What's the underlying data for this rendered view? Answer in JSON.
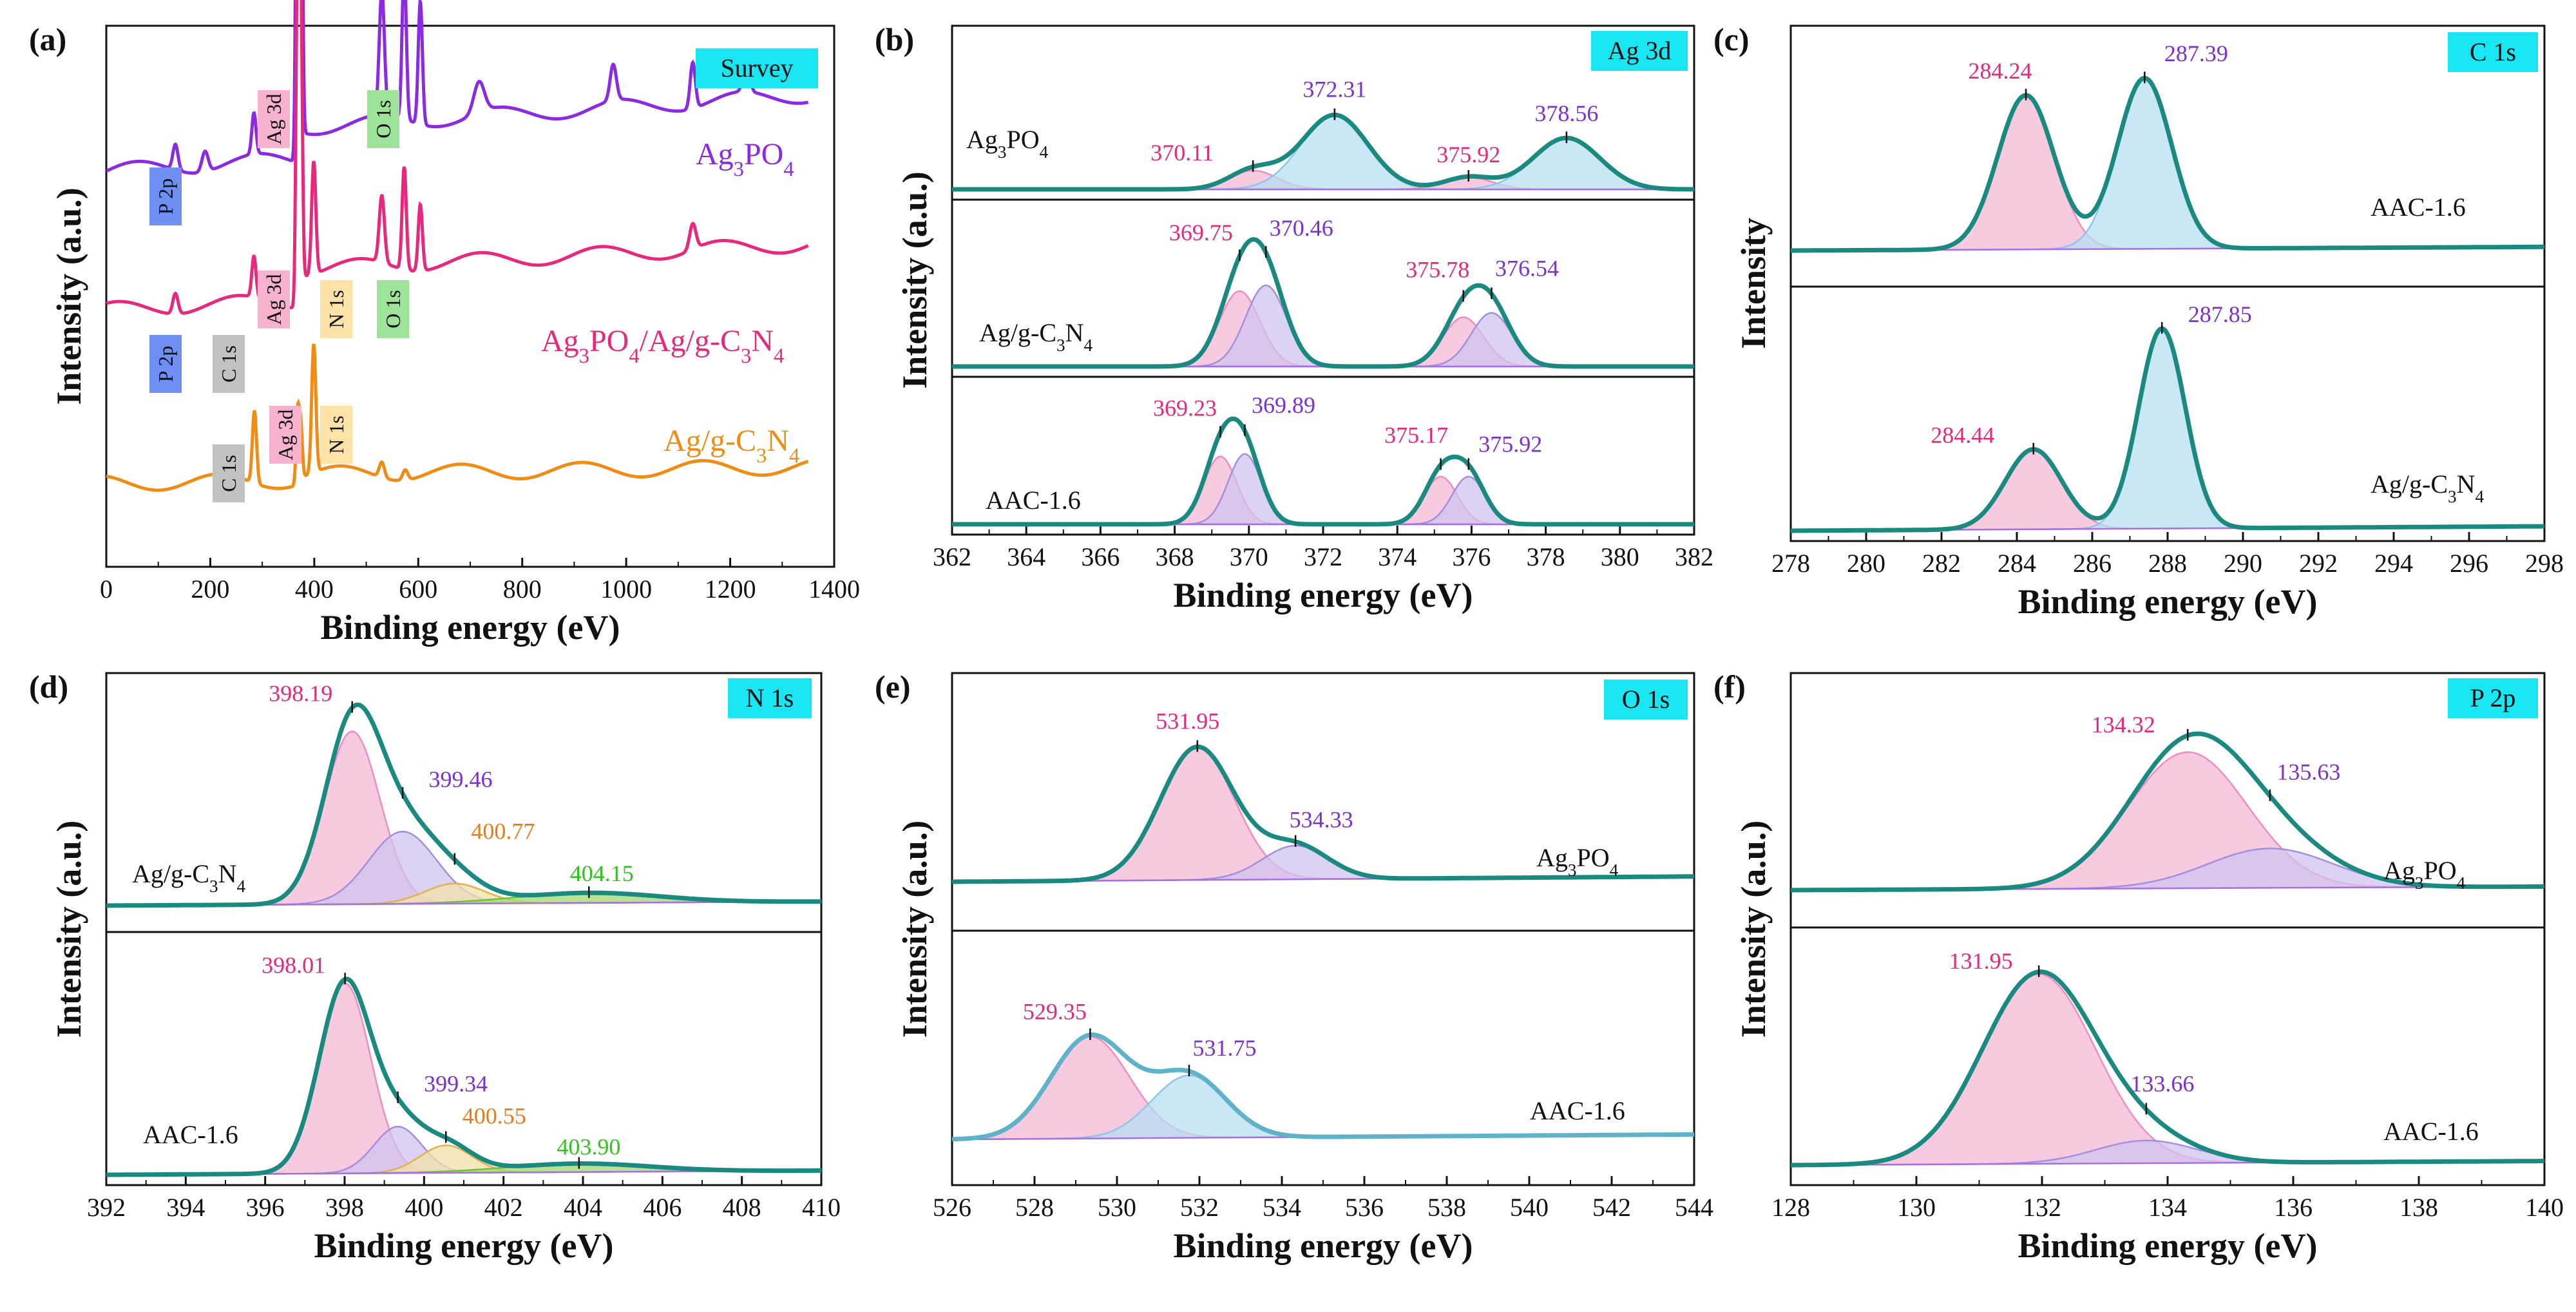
{
  "figure": {
    "x_title": "Binding energy (eV)",
    "y_title": "Intensity (a.u.)"
  },
  "colors": {
    "teal": "#1a8a80",
    "pink": "#f5b8d5",
    "blue": "#b7dff2",
    "lavender": "#d0c4ee",
    "yellow": "#f2e0a8",
    "green": "#9fd86f",
    "tag_cyan": "#18e6f2",
    "lbl_pink": "#e6287c",
    "lbl_purple": "#7b2fd6",
    "lbl_orange": "#f07a10",
    "lbl_green": "#2ec41c",
    "survey_purple": "#8a2be2",
    "survey_pink": "#e8287c",
    "survey_orange": "#f08c14",
    "tag_pink": "#f6b2cf",
    "tag_green": "#9fe39b",
    "tag_yellow": "#fde2a8",
    "tag_blue": "#6f8ff4",
    "tag_gray": "#c2c2c2"
  },
  "chart_data": [
    {
      "panel": "a",
      "type": "line",
      "tag": "Survey",
      "panel_label": "(a)",
      "xlim": [
        0,
        1400
      ],
      "xticks": [
        "0",
        "200",
        "400",
        "600",
        "800",
        "1000",
        "1200",
        "1400"
      ],
      "xlabel": "Binding energy (eV)",
      "ylabel": "Intensity (a.u.)",
      "series": [
        {
          "name": "Ag3PO4",
          "label_main": "Ag",
          "label_sub1": "3",
          "label_mid": "PO",
          "label_sub2": "4",
          "baseline": 0.82,
          "tilt": 0.22,
          "peaks": [
            [
              133,
              0.05,
              5
            ],
            [
              190,
              0.04,
              6
            ],
            [
              284,
              0.08,
              4
            ],
            [
              368,
              1.0,
              3
            ],
            [
              374,
              0.8,
              3
            ],
            [
              530,
              0.24,
              5
            ],
            [
              573,
              0.3,
              4
            ],
            [
              604,
              0.24,
              4
            ],
            [
              717,
              0.06,
              10
            ],
            [
              975,
              0.07,
              6
            ],
            [
              1128,
              0.09,
              5
            ],
            [
              1231,
              0.06,
              6
            ]
          ]
        },
        {
          "name": "Ag3PO4/Ag/g-C3N4",
          "label": "Ag₃PO₄/Ag/g-C₃N₄",
          "baseline": 0.5,
          "tilt": 0.17,
          "peaks": [
            [
              133,
              0.04,
              5
            ],
            [
              284,
              0.08,
              4
            ],
            [
              368,
              0.7,
              3
            ],
            [
              374,
              0.55,
              3
            ],
            [
              399,
              0.22,
              4
            ],
            [
              530,
              0.13,
              5
            ],
            [
              573,
              0.2,
              4
            ],
            [
              604,
              0.13,
              4
            ],
            [
              1128,
              0.05,
              6
            ]
          ]
        },
        {
          "name": "Ag/g-C3N4",
          "label": "Ag/g-C₃N₄",
          "baseline": 0.15,
          "tilt": 0.05,
          "peaks": [
            [
              285,
              0.14,
              4
            ],
            [
              368,
              0.13,
              3
            ],
            [
              374,
              0.1,
              3
            ],
            [
              399,
              0.25,
              4
            ],
            [
              530,
              0.03,
              5
            ],
            [
              575,
              0.02,
              5
            ]
          ]
        }
      ],
      "annotations": [
        "Ag 3d",
        "O 1s",
        "P 2p",
        "Ag 3d",
        "N 1s",
        "O 1s",
        "P 2p",
        "C 1s",
        "C 1s",
        "Ag 3d",
        "N 1s"
      ]
    },
    {
      "panel": "b",
      "type": "area",
      "tag": "Ag 3d",
      "panel_label": "(b)",
      "xlim": [
        362,
        382
      ],
      "xticks": [
        "362",
        "364",
        "366",
        "368",
        "370",
        "372",
        "374",
        "376",
        "378",
        "380",
        "382"
      ],
      "xlabel": "Binding energy  (eV)",
      "ylabel": "Intensity (a.u.)",
      "subplots": [
        {
          "name": "Ag3PO4",
          "components": [
            {
              "center": 370.11,
              "height": 0.14,
              "width": 0.65,
              "fill": "pink",
              "label": "370.11"
            },
            {
              "center": 372.31,
              "height": 0.55,
              "width": 0.9,
              "fill": "blue",
              "label": "372.31"
            },
            {
              "center": 375.92,
              "height": 0.09,
              "width": 0.65,
              "fill": "pink",
              "label": "375.92"
            },
            {
              "center": 378.56,
              "height": 0.38,
              "width": 0.9,
              "fill": "blue",
              "label": "378.56"
            }
          ]
        },
        {
          "name": "Ag/g-C3N4",
          "components": [
            {
              "center": 369.75,
              "height": 0.52,
              "width": 0.55,
              "fill": "pink",
              "label": "369.75"
            },
            {
              "center": 370.46,
              "height": 0.56,
              "width": 0.55,
              "fill": "lavender",
              "label": "370.46"
            },
            {
              "center": 375.78,
              "height": 0.34,
              "width": 0.55,
              "fill": "pink",
              "label": "375.78"
            },
            {
              "center": 376.54,
              "height": 0.37,
              "width": 0.55,
              "fill": "lavender",
              "label": "376.54"
            }
          ]
        },
        {
          "name": "AAC-1.6",
          "components": [
            {
              "center": 369.23,
              "height": 0.54,
              "width": 0.45,
              "fill": "pink",
              "label": "369.23"
            },
            {
              "center": 369.89,
              "height": 0.56,
              "width": 0.45,
              "fill": "lavender",
              "label": "369.89"
            },
            {
              "center": 375.17,
              "height": 0.38,
              "width": 0.45,
              "fill": "pink",
              "label": "375.17"
            },
            {
              "center": 375.92,
              "height": 0.38,
              "width": 0.45,
              "fill": "lavender",
              "label": "375.92"
            }
          ]
        }
      ]
    },
    {
      "panel": "c",
      "type": "area",
      "tag": "C 1s",
      "panel_label": "(c)",
      "xlim": [
        278,
        298
      ],
      "xticks": [
        "278",
        "280",
        "282",
        "284",
        "286",
        "288",
        "290",
        "292",
        "294",
        "296",
        "298"
      ],
      "xlabel": "Binding energy (eV)",
      "ylabel": "Intensity",
      "subplots": [
        {
          "name": "AAC-1.6",
          "components": [
            {
              "center": 284.24,
              "height": 0.84,
              "width": 0.75,
              "fill": "pink",
              "label": "284.24"
            },
            {
              "center": 287.39,
              "height": 0.93,
              "width": 0.72,
              "fill": "blue",
              "label": "287.39"
            }
          ]
        },
        {
          "name": "Ag/g-C3N4",
          "components": [
            {
              "center": 284.44,
              "height": 0.36,
              "width": 0.75,
              "fill": "pink",
              "label": "284.44"
            },
            {
              "center": 287.85,
              "height": 0.9,
              "width": 0.62,
              "fill": "blue",
              "label": "287.85"
            }
          ]
        }
      ]
    },
    {
      "panel": "d",
      "type": "area",
      "tag": "N 1s",
      "panel_label": "(d)",
      "xlim": [
        392,
        410
      ],
      "xticks": [
        "392",
        "394",
        "396",
        "398",
        "400",
        "402",
        "404",
        "406",
        "408",
        "410"
      ],
      "xlabel": "Binding energy (eV)",
      "ylabel": "Intensity (a.u.)",
      "subplots": [
        {
          "name": "Ag/g-C3N4",
          "components": [
            {
              "center": 398.19,
              "height": 0.86,
              "width": 0.7,
              "fill": "pink",
              "label": "398.19"
            },
            {
              "center": 399.46,
              "height": 0.36,
              "width": 0.85,
              "fill": "lavender",
              "label": "399.46"
            },
            {
              "center": 400.77,
              "height": 0.1,
              "width": 0.75,
              "fill": "yellow",
              "label": "400.77"
            },
            {
              "center": 404.15,
              "height": 0.05,
              "width": 1.8,
              "fill": "green",
              "label": "404.15"
            }
          ]
        },
        {
          "name": "AAC-1.6",
          "components": [
            {
              "center": 398.01,
              "height": 0.9,
              "width": 0.65,
              "fill": "pink",
              "label": "398.01"
            },
            {
              "center": 399.34,
              "height": 0.22,
              "width": 0.6,
              "fill": "lavender",
              "label": "399.34"
            },
            {
              "center": 400.55,
              "height": 0.13,
              "width": 0.65,
              "fill": "yellow",
              "label": "400.55"
            },
            {
              "center": 403.9,
              "height": 0.04,
              "width": 1.8,
              "fill": "green",
              "label": "403.90"
            }
          ]
        }
      ]
    },
    {
      "panel": "e",
      "type": "area",
      "tag": "O 1s",
      "panel_label": "(e)",
      "xlim": [
        526,
        544
      ],
      "xticks": [
        "526",
        "528",
        "530",
        "532",
        "534",
        "536",
        "538",
        "540",
        "542",
        "544"
      ],
      "xlabel": "Binding energy (eV)",
      "ylabel": "Intensity (a.u.)",
      "subplots": [
        {
          "name": "Ag3PO4",
          "components": [
            {
              "center": 531.95,
              "height": 0.75,
              "width": 0.9,
              "fill": "pink",
              "label": "531.95"
            },
            {
              "center": 534.33,
              "height": 0.19,
              "width": 0.8,
              "fill": "lavender",
              "label": "534.33"
            }
          ]
        },
        {
          "name": "AAC-1.6",
          "components": [
            {
              "center": 529.35,
              "height": 0.62,
              "width": 0.95,
              "fill": "pink",
              "label": "529.35"
            },
            {
              "center": 531.75,
              "height": 0.38,
              "width": 0.9,
              "fill": "blue",
              "label": "531.75"
            }
          ]
        }
      ]
    },
    {
      "panel": "f",
      "type": "area",
      "tag": "P 2p",
      "panel_label": "(f)",
      "xlim": [
        128,
        140
      ],
      "xticks": [
        "128",
        "130",
        "132",
        "134",
        "136",
        "138",
        "140"
      ],
      "xlabel": "Binding energy (eV)",
      "ylabel": "Intensity (a.u.)",
      "subplots": [
        {
          "name": "Ag3PO4",
          "components": [
            {
              "center": 134.32,
              "height": 0.76,
              "width": 0.95,
              "fill": "pink",
              "label": "134.32"
            },
            {
              "center": 135.63,
              "height": 0.22,
              "width": 1.0,
              "fill": "lavender",
              "label": "135.63"
            }
          ]
        },
        {
          "name": "AAC-1.6",
          "components": [
            {
              "center": 131.95,
              "height": 0.92,
              "width": 0.9,
              "fill": "pink",
              "label": "131.95"
            },
            {
              "center": 133.66,
              "height": 0.11,
              "width": 0.8,
              "fill": "lavender",
              "label": "133.66"
            }
          ]
        }
      ]
    }
  ]
}
